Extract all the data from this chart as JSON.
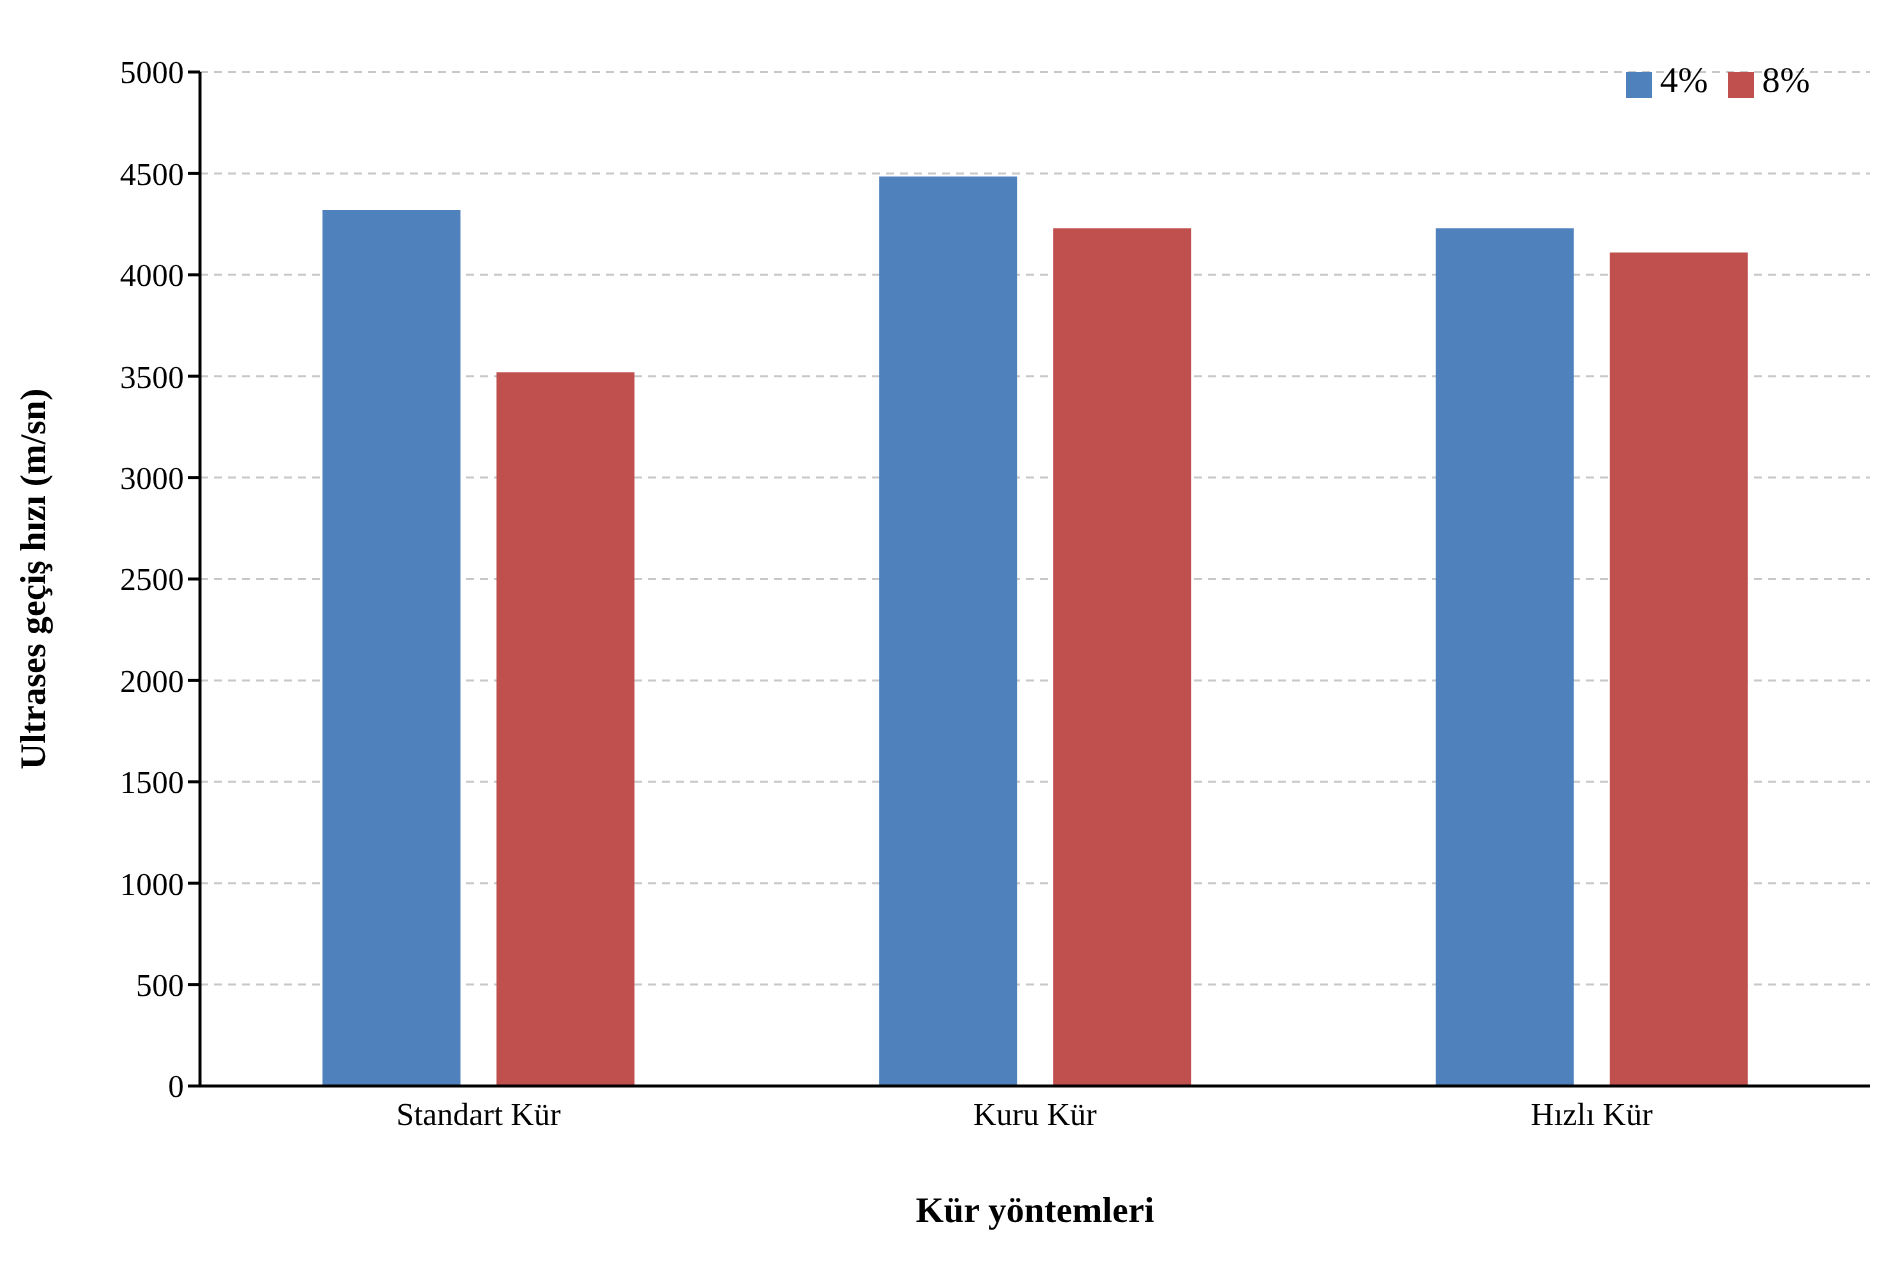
{
  "chart_data": {
    "type": "bar",
    "xlabel": "Kür yöntemleri",
    "ylabel": "Ultrases geçiş hızı (m/sn)",
    "categories": [
      "Standart Kür",
      "Kuru Kür",
      "Hızlı Kür"
    ],
    "series": [
      {
        "name": "4%",
        "color": "#4f81bd",
        "values": [
          4320,
          4485,
          4230
        ]
      },
      {
        "name": "8%",
        "color": "#c0504d",
        "values": [
          3520,
          4230,
          4110
        ]
      }
    ],
    "ylim": [
      0,
      5000
    ],
    "yticks": [
      0,
      500,
      1000,
      1500,
      2000,
      2500,
      3000,
      3500,
      4000,
      4500,
      5000
    ],
    "grid": "y",
    "legend": "top right"
  }
}
